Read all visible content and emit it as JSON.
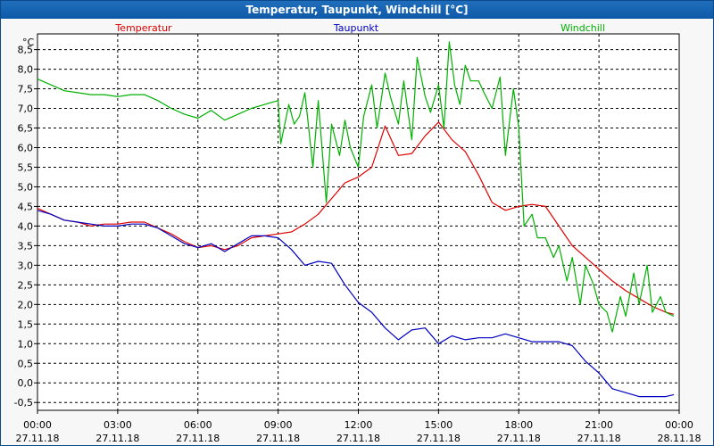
{
  "window": {
    "title": "Temperatur, Taupunkt, Windchill [°C]"
  },
  "chart_data": {
    "type": "line",
    "title": "Temperatur, Taupunkt, Windchill [°C]",
    "ylabel": "°C",
    "ylim": [
      -0.7,
      8.9
    ],
    "yticks": [
      "-0,5",
      "0,0",
      "0,5",
      "1,0",
      "1,5",
      "2,0",
      "2,5",
      "3,0",
      "3,5",
      "4,0",
      "4,5",
      "5,0",
      "5,5",
      "6,0",
      "6,5",
      "7,0",
      "7,5",
      "8,0",
      "8,5"
    ],
    "ytick_values": [
      -0.5,
      0,
      0.5,
      1,
      1.5,
      2,
      2.5,
      3,
      3.5,
      4,
      4.5,
      5,
      5.5,
      6,
      6.5,
      7,
      7.5,
      8,
      8.5
    ],
    "xlim_hours": [
      0,
      24
    ],
    "xticks": [
      {
        "time": "00:00",
        "date": "27.11.18"
      },
      {
        "time": "03:00",
        "date": "27.11.18"
      },
      {
        "time": "06:00",
        "date": "27.11.18"
      },
      {
        "time": "09:00",
        "date": "27.11.18"
      },
      {
        "time": "12:00",
        "date": "27.11.18"
      },
      {
        "time": "15:00",
        "date": "27.11.18"
      },
      {
        "time": "18:00",
        "date": "27.11.18"
      },
      {
        "time": "21:00",
        "date": "27.11.18"
      },
      {
        "time": "00:00",
        "date": "28.11.18"
      }
    ],
    "grid": true,
    "series": [
      {
        "name": "Temperatur",
        "color": "#e00000",
        "x": [
          0,
          0.5,
          1,
          1.5,
          2,
          2.5,
          3,
          3.5,
          4,
          4.5,
          5,
          5.5,
          6,
          6.5,
          7,
          7.5,
          8,
          8.5,
          9,
          9.5,
          10,
          10.5,
          11,
          11.5,
          12,
          12.5,
          13,
          13.5,
          14,
          14.5,
          15,
          15.5,
          16,
          16.5,
          17,
          17.5,
          18,
          18.5,
          19,
          19.5,
          20,
          20.5,
          21,
          21.5,
          22,
          22.5,
          23,
          23.5,
          23.8
        ],
        "y": [
          4.45,
          4.3,
          4.15,
          4.1,
          4.0,
          4.05,
          4.05,
          4.1,
          4.1,
          3.95,
          3.8,
          3.6,
          3.45,
          3.5,
          3.4,
          3.5,
          3.7,
          3.75,
          3.8,
          3.85,
          4.05,
          4.3,
          4.7,
          5.1,
          5.25,
          5.5,
          6.55,
          5.8,
          5.85,
          6.3,
          6.65,
          6.2,
          5.9,
          5.3,
          4.6,
          4.4,
          4.5,
          4.55,
          4.5,
          4.0,
          3.5,
          3.2,
          2.9,
          2.6,
          2.35,
          2.15,
          1.95,
          1.8,
          1.75
        ]
      },
      {
        "name": "Taupunkt",
        "color": "#0000c0",
        "x": [
          0,
          0.5,
          1,
          1.5,
          2,
          2.5,
          3,
          3.5,
          4,
          4.5,
          5,
          5.5,
          6,
          6.5,
          7,
          7.5,
          8,
          8.5,
          9,
          9.5,
          10,
          10.5,
          11,
          11.5,
          12,
          12.5,
          13,
          13.5,
          14,
          14.5,
          15,
          15.5,
          16,
          16.5,
          17,
          17.5,
          18,
          18.5,
          19,
          19.5,
          20,
          20.5,
          21,
          21.5,
          22,
          22.5,
          23,
          23.5,
          23.8
        ],
        "y": [
          4.4,
          4.3,
          4.15,
          4.1,
          4.05,
          4.0,
          4.0,
          4.05,
          4.05,
          3.95,
          3.75,
          3.55,
          3.45,
          3.55,
          3.35,
          3.55,
          3.75,
          3.75,
          3.7,
          3.4,
          3.0,
          3.1,
          3.05,
          2.5,
          2.05,
          1.8,
          1.4,
          1.1,
          1.35,
          1.4,
          1.0,
          1.2,
          1.1,
          1.15,
          1.15,
          1.25,
          1.15,
          1.05,
          1.05,
          1.05,
          0.95,
          0.55,
          0.25,
          -0.15,
          -0.25,
          -0.35,
          -0.35,
          -0.35,
          -0.3
        ]
      },
      {
        "name": "Windchill",
        "color": "#00b000",
        "x": [
          0,
          0.5,
          1,
          1.5,
          2,
          2.5,
          3,
          3.5,
          4,
          4.5,
          5,
          5.5,
          6,
          6.5,
          7,
          7.5,
          8,
          8.5,
          9,
          9.1,
          9.4,
          9.6,
          9.8,
          10.0,
          10.3,
          10.5,
          10.8,
          11.0,
          11.3,
          11.5,
          11.7,
          12.0,
          12.2,
          12.5,
          12.7,
          13.0,
          13.2,
          13.5,
          13.7,
          14.0,
          14.2,
          14.5,
          14.7,
          15.0,
          15.2,
          15.4,
          15.6,
          15.8,
          16.0,
          16.2,
          16.5,
          16.7,
          17.0,
          17.3,
          17.5,
          17.8,
          18.0,
          18.2,
          18.5,
          18.7,
          19.0,
          19.3,
          19.5,
          19.8,
          20.0,
          20.3,
          20.5,
          20.8,
          21.0,
          21.3,
          21.5,
          21.8,
          22.0,
          22.3,
          22.5,
          22.8,
          23.0,
          23.3,
          23.5,
          23.8
        ],
        "y": [
          7.75,
          7.6,
          7.45,
          7.4,
          7.35,
          7.35,
          7.3,
          7.35,
          7.35,
          7.2,
          7.0,
          6.85,
          6.75,
          6.95,
          6.7,
          6.85,
          7.0,
          7.1,
          7.2,
          6.1,
          7.1,
          6.6,
          6.8,
          7.4,
          5.5,
          7.2,
          4.6,
          6.6,
          5.8,
          6.7,
          6.0,
          5.5,
          6.8,
          7.6,
          6.5,
          7.9,
          7.3,
          6.6,
          7.7,
          6.2,
          8.3,
          7.3,
          6.9,
          7.6,
          6.5,
          8.7,
          7.6,
          7.1,
          8.1,
          7.7,
          7.7,
          7.4,
          7.0,
          7.8,
          5.8,
          7.5,
          6.5,
          4.0,
          4.3,
          3.7,
          3.7,
          3.2,
          3.5,
          2.6,
          3.2,
          2.0,
          3.0,
          2.5,
          2.0,
          1.8,
          1.3,
          2.2,
          1.7,
          2.8,
          2.0,
          3.0,
          1.8,
          2.2,
          1.8,
          1.7
        ]
      }
    ]
  }
}
